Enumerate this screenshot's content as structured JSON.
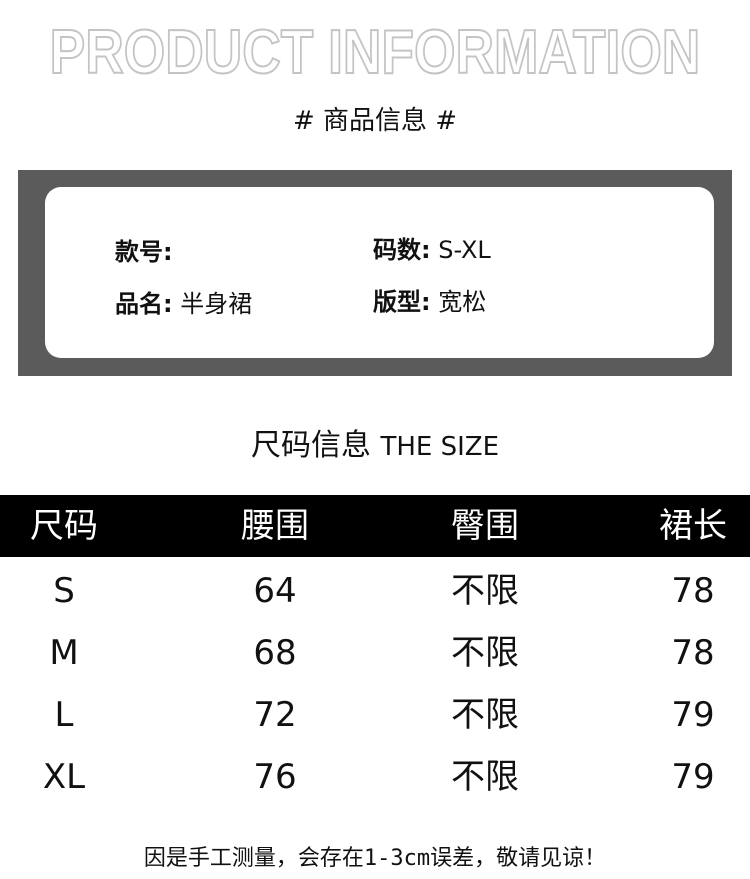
{
  "banner": "PRODUCT INFORMATION",
  "subtitle": "# 商品信息 #",
  "info": {
    "style_no": {
      "label": "款号:",
      "value": ""
    },
    "sizes": {
      "label": "码数:",
      "value": "S-XL"
    },
    "name": {
      "label": "品名:",
      "value": "半身裙"
    },
    "fit": {
      "label": "版型:",
      "value": "宽松"
    }
  },
  "size_section": {
    "title_cn": "尺码信息",
    "title_en": "THE SIZE"
  },
  "table": {
    "headers": [
      "尺码",
      "腰围",
      "臀围",
      "裙长"
    ],
    "rows": [
      [
        "S",
        "64",
        "不限",
        "78"
      ],
      [
        "M",
        "68",
        "不限",
        "78"
      ],
      [
        "L",
        "72",
        "不限",
        "79"
      ],
      [
        "XL",
        "76",
        "不限",
        "79"
      ]
    ]
  },
  "note": "因是手工测量，会存在1-3cm误差，敬请见谅！",
  "colors": {
    "box": "#5b5b5b",
    "header_bar": "#000000"
  }
}
